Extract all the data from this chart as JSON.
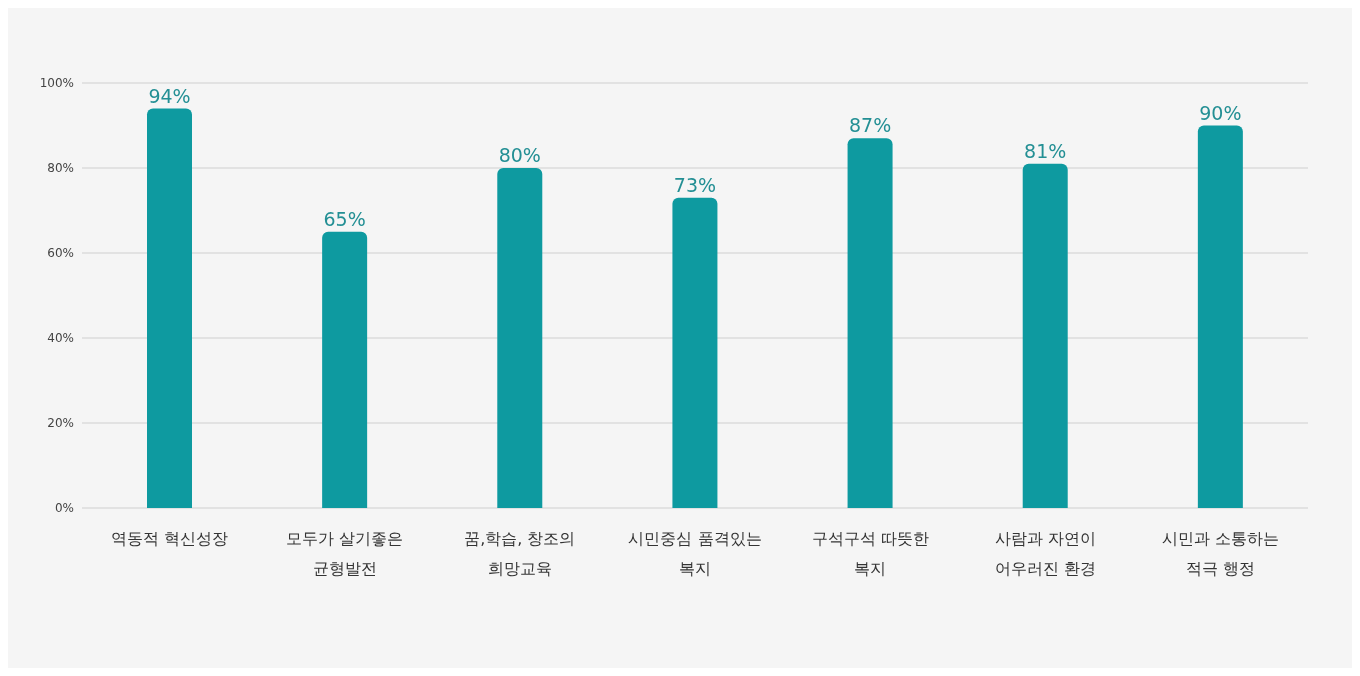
{
  "chart_data": {
    "type": "bar",
    "categories": [
      "역동적 혁신성장",
      "모두가 살기좋은 균형발전",
      "꿈,학습, 창조의 희망교육",
      "시민중심 품격있는 복지",
      "구석구석 따뜻한 복지",
      "사람과 자연이 어우러진 환경",
      "시민과 소통하는 적극 행정"
    ],
    "values": [
      94,
      65,
      80,
      73,
      87,
      81,
      90
    ],
    "value_labels": [
      "94%",
      "65%",
      "80%",
      "73%",
      "87%",
      "81%",
      "90%"
    ],
    "color": "#0e9aa0",
    "ylim": [
      0,
      100
    ],
    "yticks": [
      {
        "value": 0,
        "label": "0%"
      },
      {
        "value": 20,
        "label": "20%"
      },
      {
        "value": 40,
        "label": "40%"
      },
      {
        "value": 60,
        "label": "60%"
      },
      {
        "value": 80,
        "label": "80%"
      },
      {
        "value": 100,
        "label": "100%"
      }
    ],
    "grid": "y",
    "legend": false
  }
}
